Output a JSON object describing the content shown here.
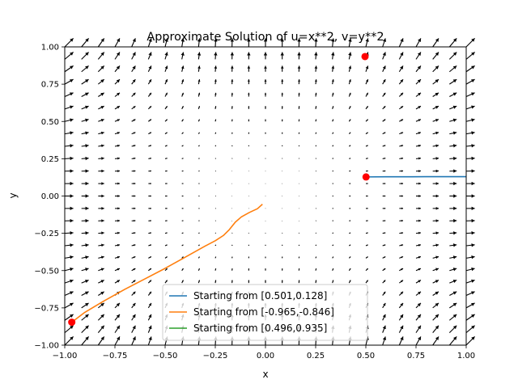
{
  "chart_data": {
    "type": "line",
    "title": "Approximate Solution of u=x**2, v=y**2",
    "xlabel": "x",
    "ylabel": "y",
    "xlim": [
      -1.0,
      1.0
    ],
    "ylim": [
      -1.0,
      1.0
    ],
    "grid": false,
    "legend_position": "lower center",
    "xticks": [
      "−1.00",
      "−0.75",
      "−0.50",
      "−0.25",
      "0.00",
      "0.25",
      "0.50",
      "0.75",
      "1.00"
    ],
    "yticks": [
      "−1.00",
      "−0.75",
      "−0.50",
      "−0.25",
      "0.00",
      "0.25",
      "0.50",
      "0.75",
      "1.00"
    ],
    "vector_field": {
      "u": "x**2",
      "v": "y**2",
      "grid_n": 25,
      "color": "#000000"
    },
    "series": [
      {
        "name": "Starting from [0.501,0.128]",
        "color": "#1f77b4",
        "start": [
          0.501,
          0.128
        ],
        "x": [
          0.501,
          0.6,
          0.7,
          0.8,
          0.9,
          1.0
        ],
        "y": [
          0.128,
          0.129,
          0.129,
          0.13,
          0.13,
          0.13
        ]
      },
      {
        "name": "Starting from [-0.965,-0.846]",
        "color": "#ff7f0e",
        "start": [
          -0.965,
          -0.846
        ],
        "x": [
          -0.965,
          -0.9,
          -0.8,
          -0.7,
          -0.6,
          -0.5,
          -0.4,
          -0.3,
          -0.25,
          -0.21,
          -0.18,
          -0.15,
          -0.12,
          -0.08,
          -0.04,
          -0.015
        ],
        "y": [
          -0.846,
          -0.78,
          -0.7,
          -0.625,
          -0.555,
          -0.485,
          -0.41,
          -0.335,
          -0.3,
          -0.265,
          -0.225,
          -0.175,
          -0.14,
          -0.11,
          -0.085,
          -0.055
        ]
      },
      {
        "name": "Starting from [0.496,0.935]",
        "color": "#2ca02c",
        "start": [
          0.496,
          0.935
        ],
        "x": [
          0.496
        ],
        "y": [
          0.935
        ]
      }
    ],
    "start_marker_color": "#ff0000"
  }
}
